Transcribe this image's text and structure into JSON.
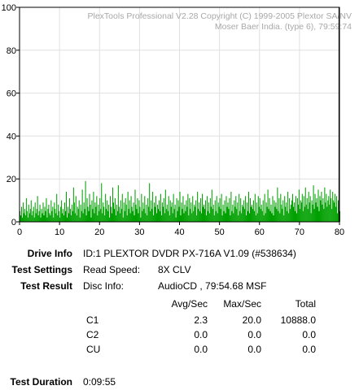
{
  "chart_data": {
    "type": "bar",
    "title": "",
    "xlabel": "",
    "ylabel": "",
    "xlim": [
      0,
      80
    ],
    "ylim": [
      0,
      100
    ],
    "x_ticks": [
      0,
      10,
      20,
      30,
      40,
      50,
      60,
      70,
      80
    ],
    "y_ticks": [
      0,
      20,
      40,
      60,
      80,
      100
    ],
    "grid": true,
    "cursor_x": 79.9,
    "bar_color": "#00a000",
    "cursor_color": "#000000",
    "watermark": [
      "PlexTools Professional V2.28 Copyright (C) 1999-2005 Plextor SA/NV",
      "Moser Baer India. (type 6), 79:59:74"
    ],
    "series": [
      {
        "name": "C1",
        "x_step": 0.2,
        "values": [
          5,
          3,
          7,
          2,
          9,
          4,
          6,
          3,
          11,
          5,
          2,
          8,
          4,
          6,
          10,
          3,
          5,
          7,
          2,
          9,
          4,
          6,
          12,
          3,
          5,
          8,
          2,
          6,
          4,
          9,
          3,
          7,
          5,
          11,
          2,
          6,
          8,
          4,
          3,
          10,
          5,
          7,
          2,
          9,
          6,
          4,
          13,
          3,
          8,
          5,
          2,
          7,
          10,
          4,
          6,
          3,
          9,
          5,
          14,
          2,
          7,
          4,
          11,
          6,
          3,
          8,
          5,
          16,
          9,
          4,
          12,
          3,
          7,
          6,
          10,
          2,
          8,
          5,
          15,
          4,
          9,
          6,
          19,
          3,
          11,
          7,
          5,
          13,
          8,
          2,
          10,
          6,
          14,
          4,
          9,
          7,
          12,
          3,
          8,
          5,
          11,
          6,
          18,
          4,
          9,
          7,
          3,
          13,
          6,
          10,
          5,
          8,
          2,
          12,
          7,
          4,
          16,
          9,
          6,
          11,
          3,
          8,
          5,
          17,
          7,
          4,
          10,
          6,
          13,
          2,
          9,
          5,
          11,
          8,
          3,
          14,
          6,
          10,
          4,
          12,
          7,
          5,
          9,
          3,
          15,
          8,
          6,
          11,
          4,
          10,
          7,
          2,
          13,
          5,
          9,
          6,
          12,
          4,
          8,
          3,
          11,
          7,
          18,
          5,
          10,
          6,
          14,
          3,
          9,
          7,
          12,
          4,
          8,
          6,
          10,
          5,
          13,
          3,
          9,
          7,
          11,
          4,
          15,
          6,
          8,
          5,
          12,
          3,
          10,
          7,
          9,
          4,
          13,
          6,
          8,
          2,
          11,
          5,
          10,
          7,
          14,
          3,
          9,
          6,
          12,
          4,
          8,
          5,
          10,
          7,
          13,
          3,
          11,
          6,
          9,
          4,
          12,
          5,
          8,
          7,
          10,
          3,
          14,
          6,
          9,
          5,
          11,
          4,
          13,
          7,
          8,
          6,
          10,
          3,
          12,
          5,
          9,
          4,
          11,
          7,
          15,
          6,
          8,
          3,
          10,
          5,
          12,
          4,
          9,
          7,
          11,
          6,
          13,
          3,
          8,
          5,
          10,
          4,
          12,
          7,
          9,
          6,
          11,
          3,
          14,
          5,
          8,
          4,
          10,
          7,
          12,
          6,
          9,
          3,
          13,
          5,
          11,
          4,
          8,
          7,
          10,
          6,
          12,
          3,
          9,
          5,
          14,
          4,
          11,
          7,
          8,
          6,
          10,
          5,
          13,
          3,
          9,
          4,
          12,
          7,
          11,
          6,
          8,
          5,
          10,
          3,
          13,
          4,
          9,
          7,
          15,
          6,
          11,
          5,
          8,
          4,
          12,
          3,
          10,
          7,
          9,
          6,
          16,
          5,
          11,
          4,
          13,
          8,
          6,
          10,
          3,
          12,
          7,
          9,
          5,
          14,
          4,
          11,
          6,
          8,
          10,
          13,
          7,
          9,
          5,
          12,
          4,
          11,
          8,
          15,
          6,
          10,
          9,
          13,
          5,
          12,
          7,
          16,
          8,
          11,
          6,
          14,
          9,
          12,
          4,
          10,
          8,
          17,
          6,
          13,
          9,
          11,
          7,
          15,
          5,
          12,
          10,
          14,
          8,
          11,
          6,
          16,
          9,
          13,
          7,
          10,
          12,
          8,
          15,
          11,
          6,
          14,
          10,
          9,
          13,
          7,
          12,
          4,
          10,
          8,
          5
        ]
      }
    ]
  },
  "info": {
    "drive_info_label": "Drive Info",
    "drive_info_value": "ID:1 PLEXTOR DVDR PX-716A V1.09 (#538634)",
    "test_settings_label": "Test Settings",
    "read_speed_label": "Read Speed:",
    "read_speed_value": "8X CLV",
    "test_result_label": "Test Result",
    "disc_info_label": "Disc Info:",
    "disc_info_value": "AudioCD , 79:54.68 MSF",
    "columns": [
      "Avg/Sec",
      "Max/Sec",
      "Total"
    ],
    "rows": [
      {
        "name": "C1",
        "avg": "2.3",
        "max": "20.0",
        "total": "10888.0"
      },
      {
        "name": "C2",
        "avg": "0.0",
        "max": "0.0",
        "total": "0.0"
      },
      {
        "name": "CU",
        "avg": "0.0",
        "max": "0.0",
        "total": "0.0"
      }
    ],
    "test_duration_label": "Test Duration",
    "test_duration_value": "0:09:55"
  }
}
